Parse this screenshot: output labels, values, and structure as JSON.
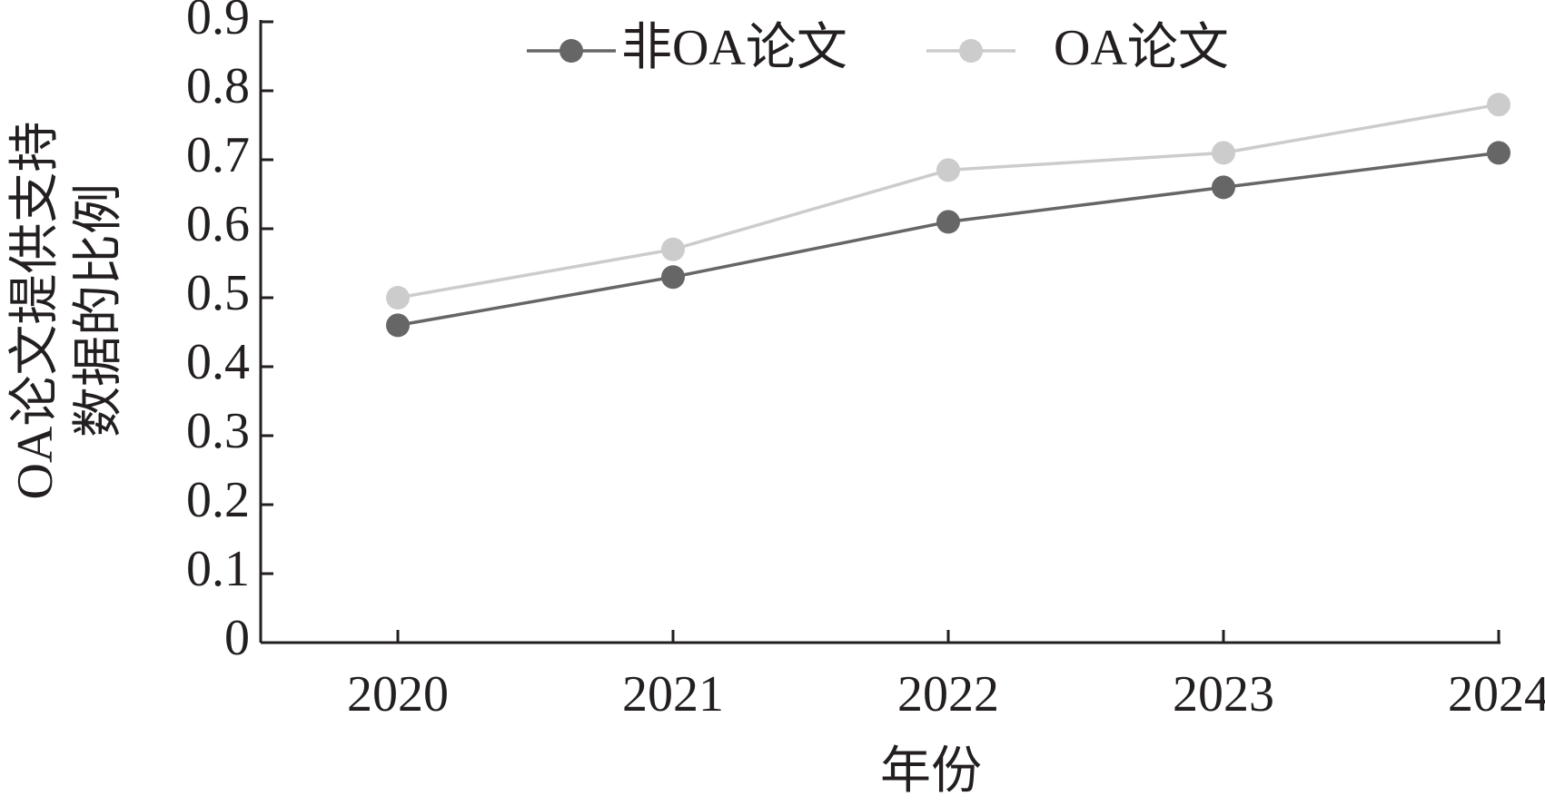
{
  "chart_data": {
    "type": "line",
    "ylabel": [
      "OA论文提供支持",
      "数据的比例"
    ],
    "xlabel": "年份",
    "categories": [
      "2020",
      "2021",
      "2022",
      "2023",
      "2024"
    ],
    "series": [
      {
        "name": "非OA论文",
        "color": "#666666",
        "values": [
          0.46,
          0.53,
          0.61,
          0.66,
          0.71
        ]
      },
      {
        "name": "OA论文",
        "color": "#cccccc",
        "values": [
          0.5,
          0.57,
          0.685,
          0.71,
          0.78
        ]
      }
    ],
    "ylim": [
      0,
      0.9
    ],
    "yticks": [
      0,
      0.1,
      0.2,
      0.3,
      0.4,
      0.5,
      0.6,
      0.7,
      0.8,
      0.9
    ],
    "legend": "top"
  }
}
